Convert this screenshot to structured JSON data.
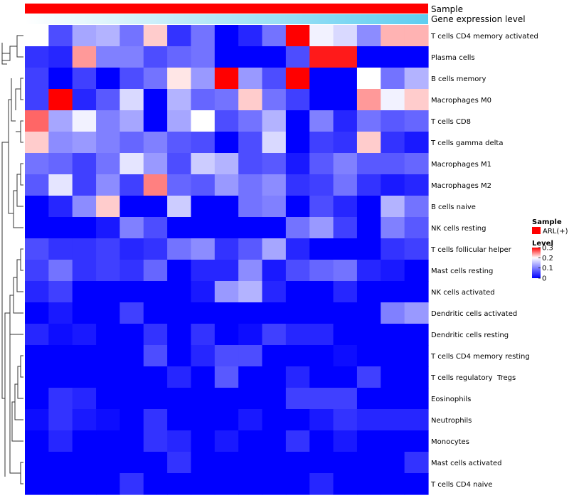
{
  "chart_data": {
    "type": "heatmap",
    "annotation_tracks": [
      {
        "name": "Sample",
        "color": "#ff0000"
      },
      {
        "name": "Gene expression level",
        "gradient_from": "#ffffff",
        "gradient_to": "#5ecdf0"
      }
    ],
    "rows": [
      "T cells CD4 memory activated",
      "Plasma cells",
      "B cells memory",
      "Macrophages M0",
      "T cells CD8",
      "T cells gamma delta",
      "Macrophages M1",
      "Macrophages M2",
      "B cells naive",
      "NK cells resting",
      "T cells follicular helper",
      "Mast cells resting",
      "NK cells activated",
      "Dendritic cells activated",
      "Dendritic cells resting",
      "T cells CD4 memory resting",
      "T cells regulatory  Tregs",
      "Eosinophils",
      "Neutrophils",
      "Monocytes",
      "Mast cells activated",
      "T cells CD4 naive"
    ],
    "values": [
      [
        0.2,
        0.06,
        0.13,
        0.14,
        0.09,
        0.22,
        0.04,
        0.09,
        0.0,
        0.03,
        0.09,
        0.3,
        0.19,
        0.17,
        0.11,
        0.23,
        0.23
      ],
      [
        0.04,
        0.03,
        0.24,
        0.1,
        0.1,
        0.06,
        0.08,
        0.09,
        0.0,
        0.0,
        0.0,
        0.06,
        0.29,
        0.29,
        0.0,
        0.0,
        0.0
      ],
      [
        0.05,
        0.0,
        0.05,
        0.0,
        0.06,
        0.09,
        0.21,
        0.12,
        0.3,
        0.12,
        0.06,
        0.3,
        0.0,
        0.0,
        0.2,
        0.09,
        0.14
      ],
      [
        0.05,
        0.3,
        0.03,
        0.07,
        0.17,
        0.0,
        0.14,
        0.08,
        0.09,
        0.22,
        0.09,
        0.05,
        0.0,
        0.0,
        0.24,
        0.19,
        0.22
      ],
      [
        0.26,
        0.13,
        0.19,
        0.1,
        0.13,
        0.0,
        0.13,
        0.2,
        0.06,
        0.09,
        0.14,
        0.0,
        0.1,
        0.03,
        0.09,
        0.07,
        0.08
      ],
      [
        0.22,
        0.11,
        0.12,
        0.1,
        0.08,
        0.1,
        0.07,
        0.06,
        0.0,
        0.06,
        0.17,
        0.0,
        0.05,
        0.04,
        0.22,
        0.04,
        0.02
      ],
      [
        0.09,
        0.08,
        0.05,
        0.09,
        0.18,
        0.12,
        0.06,
        0.16,
        0.14,
        0.06,
        0.07,
        0.02,
        0.07,
        0.1,
        0.07,
        0.07,
        0.08
      ],
      [
        0.07,
        0.18,
        0.05,
        0.11,
        0.05,
        0.25,
        0.08,
        0.07,
        0.12,
        0.09,
        0.11,
        0.04,
        0.05,
        0.09,
        0.04,
        0.02,
        0.03
      ],
      [
        0.0,
        0.03,
        0.11,
        0.22,
        0.0,
        0.0,
        0.16,
        0.0,
        0.0,
        0.09,
        0.1,
        0.0,
        0.06,
        0.03,
        0.0,
        0.14,
        0.09
      ],
      [
        0.0,
        0.0,
        0.0,
        0.02,
        0.1,
        0.06,
        0.0,
        0.0,
        0.0,
        0.0,
        0.0,
        0.09,
        0.12,
        0.05,
        0.0,
        0.1,
        0.07
      ],
      [
        0.06,
        0.04,
        0.04,
        0.05,
        0.03,
        0.04,
        0.09,
        0.11,
        0.04,
        0.07,
        0.13,
        0.03,
        0.0,
        0.0,
        0.0,
        0.04,
        0.05
      ],
      [
        0.05,
        0.09,
        0.04,
        0.05,
        0.04,
        0.08,
        0.0,
        0.03,
        0.03,
        0.11,
        0.02,
        0.06,
        0.08,
        0.09,
        0.03,
        0.02,
        0.0
      ],
      [
        0.03,
        0.05,
        0.0,
        0.0,
        0.0,
        0.0,
        0.0,
        0.02,
        0.12,
        0.14,
        0.03,
        0.0,
        0.0,
        0.03,
        0.0,
        0.0,
        0.0
      ],
      [
        0.0,
        0.02,
        0.0,
        0.0,
        0.05,
        0.0,
        0.0,
        0.0,
        0.0,
        0.0,
        0.0,
        0.0,
        0.0,
        0.0,
        0.0,
        0.1,
        0.12
      ],
      [
        0.03,
        0.01,
        0.02,
        0.0,
        0.0,
        0.04,
        0.0,
        0.04,
        0.0,
        0.01,
        0.05,
        0.03,
        0.03,
        0.0,
        0.0,
        0.0,
        0.0
      ],
      [
        0.0,
        0.0,
        0.0,
        0.0,
        0.0,
        0.06,
        0.0,
        0.03,
        0.06,
        0.06,
        0.0,
        0.0,
        0.0,
        0.01,
        0.0,
        0.0,
        0.0
      ],
      [
        0.0,
        0.0,
        0.0,
        0.0,
        0.0,
        0.0,
        0.03,
        0.0,
        0.07,
        0.0,
        0.0,
        0.03,
        0.0,
        0.0,
        0.05,
        0.0,
        0.0
      ],
      [
        0.0,
        0.04,
        0.03,
        0.0,
        0.0,
        0.0,
        0.0,
        0.0,
        0.0,
        0.0,
        0.0,
        0.05,
        0.05,
        0.05,
        0.0,
        0.0,
        0.0
      ],
      [
        0.01,
        0.04,
        0.02,
        0.01,
        0.0,
        0.04,
        0.0,
        0.0,
        0.0,
        0.02,
        0.0,
        0.0,
        0.02,
        0.04,
        0.03,
        0.03,
        0.03
      ],
      [
        0.0,
        0.03,
        0.0,
        0.0,
        0.0,
        0.04,
        0.03,
        0.0,
        0.02,
        0.0,
        0.0,
        0.04,
        0.0,
        0.02,
        0.0,
        0.0,
        0.0
      ],
      [
        0.0,
        0.0,
        0.0,
        0.0,
        0.0,
        0.0,
        0.04,
        0.0,
        0.0,
        0.0,
        0.0,
        0.0,
        0.0,
        0.0,
        0.0,
        0.0,
        0.04
      ],
      [
        0.0,
        0.0,
        0.0,
        0.0,
        0.04,
        0.0,
        0.0,
        0.0,
        0.0,
        0.0,
        0.0,
        0.0,
        0.03,
        0.0,
        0.0,
        0.0,
        0.0
      ]
    ],
    "color_scale": {
      "min": 0,
      "max": 0.3,
      "low": "#0000ff",
      "mid": "#ffffff",
      "high": "#ff0000",
      "mid_value": 0.2
    },
    "legend": {
      "sample_title": "Sample",
      "sample_entry": "ARL(+)",
      "sample_color": "#ff0000",
      "level_title": "Level",
      "level_ticks": [
        {
          "value": 0.3,
          "label": "0.3"
        },
        {
          "value": 0.2,
          "label": "0.2"
        },
        {
          "value": 0.1,
          "label": "0.1"
        },
        {
          "value": 0,
          "label": "0"
        }
      ],
      "placement": "right"
    },
    "row_dendrogram": true
  }
}
